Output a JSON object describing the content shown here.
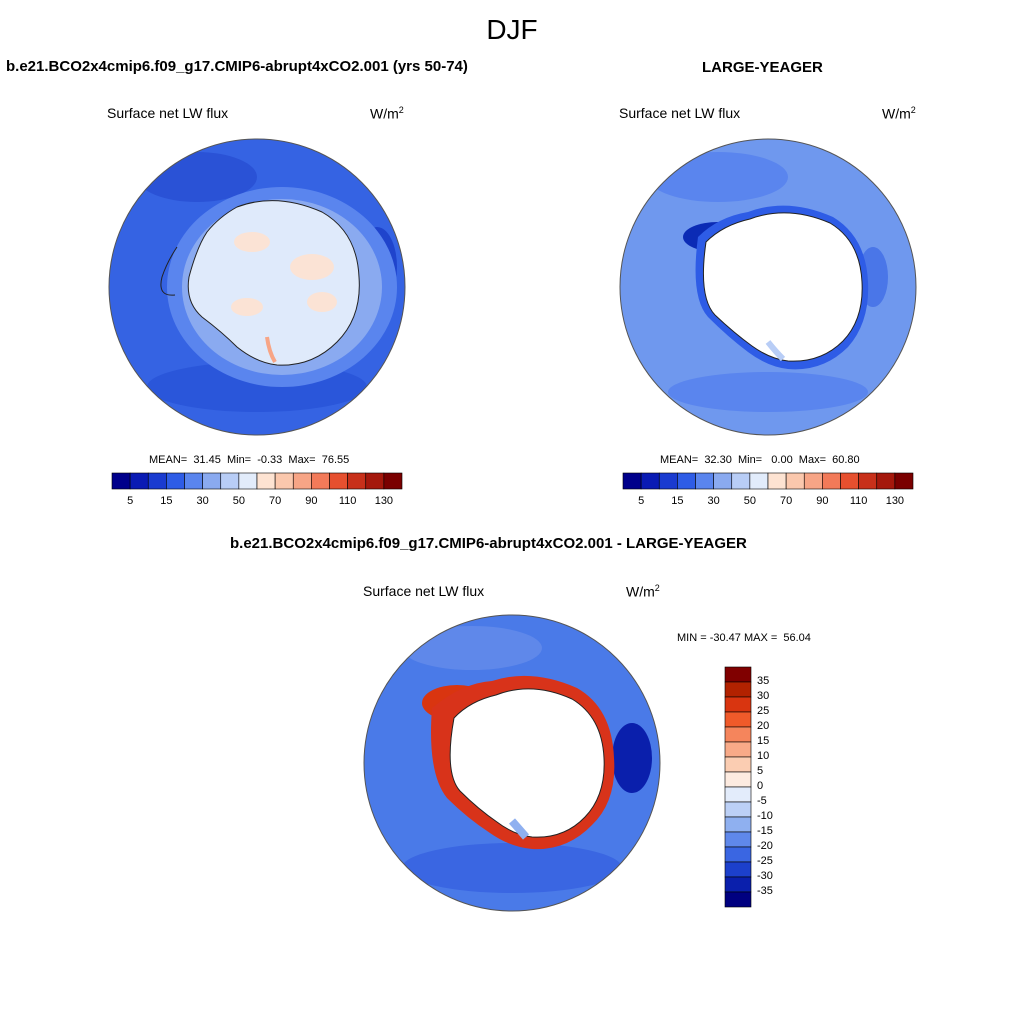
{
  "figure": {
    "title": "DJF"
  },
  "panels": {
    "left": {
      "title": "b.e21.BCO2x4cmip6.f09_g17.CMIP6-abrupt4xCO2.001 (yrs 50-74)",
      "variable": "Surface net LW flux",
      "units_base": "W/m",
      "units_exp": "2",
      "stats": "MEAN=  31.45  Min=  -0.33  Max=  76.55"
    },
    "right": {
      "title": "LARGE-YEAGER",
      "variable": "Surface net LW flux",
      "units_base": "W/m",
      "units_exp": "2",
      "stats": "MEAN=  32.30  Min=   0.00  Max=  60.80"
    },
    "diff": {
      "title": "b.e21.BCO2x4cmip6.f09_g17.CMIP6-abrupt4xCO2.001 - LARGE-YEAGER",
      "variable": "Surface net LW flux",
      "units_base": "W/m",
      "units_exp": "2",
      "stats": "MIN = -30.47 MAX =  56.04"
    }
  },
  "colorbar_top": {
    "labels": [
      "5",
      "15",
      "30",
      "50",
      "70",
      "90",
      "110",
      "130"
    ],
    "colors": [
      "#00008b",
      "#0a1bb4",
      "#1a3bd0",
      "#2e5ce6",
      "#5a85ee",
      "#8aaaf0",
      "#b8cdf6",
      "#e2ecfb",
      "#fde3d2",
      "#fbc8ad",
      "#f7a586",
      "#f27a59",
      "#e6502f",
      "#c8301a",
      "#a5180c",
      "#7a0000"
    ]
  },
  "colorbar_diff": {
    "labels": [
      "35",
      "30",
      "25",
      "20",
      "15",
      "10",
      "5",
      "0",
      "-5",
      "-10",
      "-15",
      "-20",
      "-25",
      "-30",
      "-35"
    ],
    "colors": [
      "#800000",
      "#b22200",
      "#d93510",
      "#f05a2a",
      "#f5855c",
      "#f8aa88",
      "#fbcdb2",
      "#fdebe0",
      "#e3ecfb",
      "#bcd0f6",
      "#8fb0f0",
      "#5f88ea",
      "#3a66e2",
      "#1c40cc",
      "#0a1fac",
      "#000080"
    ]
  },
  "palette": {
    "ocean_left": "#3563e3",
    "ocean_right": "#6f98ee",
    "ocean_diff": "#4a7ae8",
    "ice_shelf": "#dfeafb",
    "land_warm": "#fbe3d5",
    "deep_blue": "#0b2bb5",
    "diff_red": "#d8331a"
  }
}
